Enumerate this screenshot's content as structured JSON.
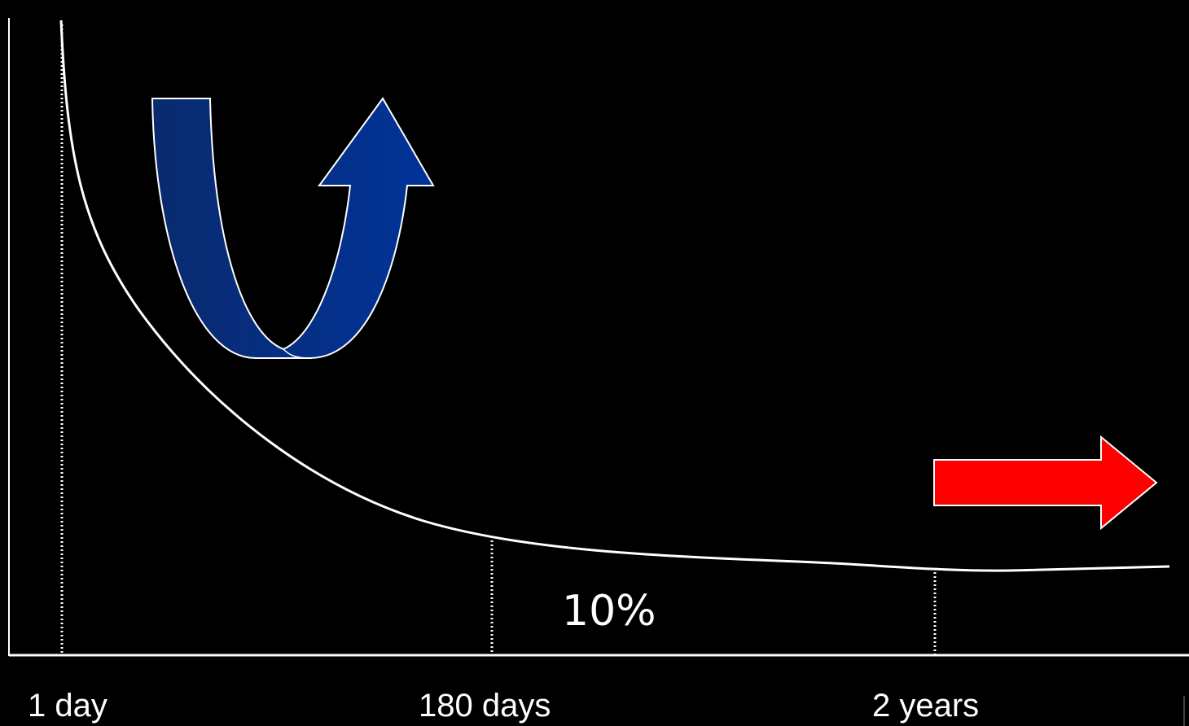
{
  "chart_data": {
    "type": "line",
    "x_tick_labels": [
      "1 day",
      "180 days",
      "2 years"
    ],
    "annotation": "10%",
    "grid": false,
    "legend": "none",
    "series_color": "#ffffff",
    "background": "#000000"
  },
  "decorations": {
    "u_turn_arrow": {
      "color_dark": "#0a2a6e",
      "color_light": "#003399",
      "outline": "#ffffff"
    },
    "right_arrow": {
      "color": "#ff0000",
      "outline": "#ffffff"
    }
  }
}
